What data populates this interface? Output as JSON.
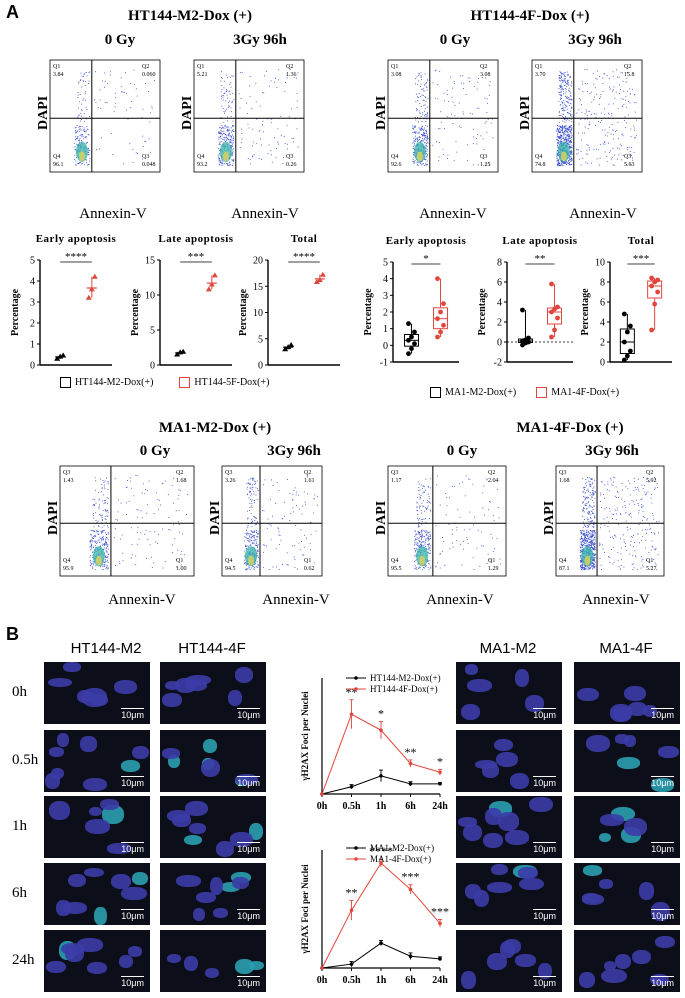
{
  "panel_a": {
    "letter": "A",
    "ht144_m2_title": "HT144-M2-Dox (+)",
    "ht144_4f_title": "HT144-4F-Dox (+)",
    "ma1_m2_title": "MA1-M2-Dox (+)",
    "ma1_4f_title": "MA1-4F-Dox (+)",
    "cond_0": "0 Gy",
    "cond_3": "3Gy 96h",
    "x_axis": "Annexin-V",
    "y_axis": "DAPI",
    "flow_top": [
      {
        "q1": "Q1",
        "q1v": "3.84",
        "q2": "Q2",
        "q2v": "0.060",
        "q3": "Q3",
        "q3v": "0.048",
        "q4": "Q4",
        "q4v": "96.1"
      },
      {
        "q1": "Q1",
        "q1v": "5.21",
        "q2": "Q2",
        "q2v": "1.36",
        "q3": "Q3",
        "q3v": "0.26",
        "q4": "Q4",
        "q4v": "93.2"
      },
      {
        "q1": "Q1",
        "q1v": "3.08",
        "q2": "Q2",
        "q2v": "3.08",
        "q3": "Q3",
        "q3v": "1.25",
        "q4": "Q4",
        "q4v": "92.6"
      },
      {
        "q1": "Q1",
        "q1v": "3.70",
        "q2": "Q2",
        "q2v": "15.8",
        "q3": "Q3",
        "q3v": "5.63",
        "q4": "Q4",
        "q4v": "74.8"
      }
    ],
    "flow_bottom": [
      {
        "q1": "Q3",
        "q1v": "1.43",
        "q2": "Q2",
        "q2v": "1.68",
        "q3": "Q1",
        "q3v": "1.00",
        "q4": "Q4",
        "q4v": "95.9"
      },
      {
        "q1": "Q3",
        "q1v": "3.26",
        "q2": "Q2",
        "q2v": "1.61",
        "q3": "Q1",
        "q3v": "0.62",
        "q4": "Q4",
        "q4v": "94.5"
      },
      {
        "q1": "Q3",
        "q1v": "1.17",
        "q2": "Q2",
        "q2v": "2.04",
        "q3": "Q1",
        "q3v": "1.29",
        "q4": "Q4",
        "q4v": "95.5"
      },
      {
        "q1": "Q3",
        "q1v": "1.68",
        "q2": "Q2",
        "q2v": "5.92",
        "q3": "Q1",
        "q3v": "5.27",
        "q4": "Q4",
        "q4v": "87.1"
      }
    ],
    "legend_ht_black": "HT144-M2-Dox(+)",
    "legend_ht_red": "HT144-5F-Dox(+)",
    "legend_ma_black": "MA1-M2-Dox(+)",
    "legend_ma_red": "MA1-4F-Dox(+)"
  },
  "panel_b": {
    "letter": "B",
    "col_ht_m2": "HT144-M2",
    "col_ht_4f": "HT144-4F",
    "col_ma_m2": "MA1-M2",
    "col_ma_4f": "MA1-4F",
    "row_labels": [
      "0h",
      "0.5h",
      "1h",
      "6h",
      "24h"
    ],
    "scale_bar": "10μm"
  },
  "colors": {
    "black": "#000000",
    "red": "#e0463c",
    "scatter": "#3a4fd0"
  },
  "chart_data": [
    {
      "type": "scatter",
      "title": "Early apoptosis",
      "ylabel": "Percentage",
      "ylim": [
        0,
        5
      ],
      "yticks": [
        "0",
        "1",
        "2",
        "3",
        "4",
        "5"
      ],
      "significance": "****",
      "series": [
        {
          "name": "HT144-M2-Dox(+)",
          "values": [
            0.3,
            0.4,
            0.45
          ]
        },
        {
          "name": "HT144-5F-Dox(+)",
          "values": [
            3.2,
            3.6,
            4.2
          ]
        }
      ]
    },
    {
      "type": "scatter",
      "title": "Late apoptosis",
      "ylabel": "Percentage",
      "ylim": [
        0,
        15
      ],
      "yticks": [
        "0",
        "5",
        "10",
        "15"
      ],
      "significance": "***",
      "series": [
        {
          "name": "HT144-M2-Dox(+)",
          "values": [
            1.5,
            1.8,
            1.9
          ]
        },
        {
          "name": "HT144-5F-Dox(+)",
          "values": [
            10.8,
            11.5,
            12.8
          ]
        }
      ]
    },
    {
      "type": "scatter",
      "title": "Total",
      "ylabel": "Percentage",
      "ylim": [
        0,
        20
      ],
      "yticks": [
        "0",
        "5",
        "10",
        "15",
        "20"
      ],
      "significance": "****",
      "series": [
        {
          "name": "HT144-M2-Dox(+)",
          "values": [
            3.0,
            3.4,
            3.8
          ]
        },
        {
          "name": "HT144-5F-Dox(+)",
          "values": [
            15.8,
            16.2,
            17.2
          ]
        }
      ]
    },
    {
      "type": "box",
      "title": "Early apoptosis",
      "ylabel": "Percentage",
      "ylim": [
        -1,
        5
      ],
      "yticks": [
        "-1",
        "0",
        "1",
        "2",
        "3",
        "4",
        "5"
      ],
      "significance": "*",
      "series": [
        {
          "name": "MA1-M2-Dox(+)",
          "values": [
            -0.5,
            -0.2,
            0.1,
            0.3,
            0.5,
            0.8,
            1.3
          ]
        },
        {
          "name": "MA1-4F-Dox(+)",
          "values": [
            0.5,
            0.8,
            1.2,
            1.6,
            2.0,
            2.5,
            4.0
          ]
        }
      ]
    },
    {
      "type": "box",
      "title": "Late apoptosis",
      "ylabel": "Percentage",
      "ylim": [
        -2,
        8
      ],
      "yticks": [
        "-2",
        "0",
        "2",
        "4",
        "6",
        "8"
      ],
      "significance": "**",
      "series": [
        {
          "name": "MA1-M2-Dox(+)",
          "values": [
            -0.3,
            -0.1,
            0.0,
            0.1,
            0.2,
            0.4,
            3.2
          ]
        },
        {
          "name": "MA1-4F-Dox(+)",
          "values": [
            0.5,
            1.2,
            2.4,
            3.0,
            3.3,
            3.5,
            5.8
          ]
        }
      ]
    },
    {
      "type": "box",
      "title": "Total",
      "ylabel": "Percentage",
      "ylim": [
        0,
        10
      ],
      "yticks": [
        "0",
        "2",
        "4",
        "6",
        "8",
        "10"
      ],
      "significance": "***",
      "series": [
        {
          "name": "MA1-M2-Dox(+)",
          "values": [
            0.2,
            0.6,
            1.1,
            2.0,
            3.0,
            3.6,
            4.8
          ]
        },
        {
          "name": "MA1-4F-Dox(+)",
          "values": [
            3.2,
            5.8,
            7.0,
            7.6,
            8.0,
            8.2,
            8.4
          ]
        }
      ]
    },
    {
      "type": "line",
      "xlabel": "",
      "ylabel": "γH2AX Foci per Nuclei",
      "x": [
        "0h",
        "0.5h",
        "1h",
        "6h",
        "24h"
      ],
      "ylim": [
        0,
        16
      ],
      "series": [
        {
          "name": "HT144-M2-Dox(+)",
          "values": [
            0,
            1.0,
            2.5,
            1.4,
            1.4
          ],
          "err": [
            0,
            0.3,
            0.8,
            0.3,
            0.2
          ]
        },
        {
          "name": "HT144-4F-Dox(+)",
          "values": [
            0,
            11.0,
            8.8,
            4.2,
            3.0
          ],
          "err": [
            0,
            2.0,
            1.2,
            0.5,
            0.4
          ]
        }
      ],
      "annotations": [
        "**",
        "*",
        "**",
        "*"
      ]
    },
    {
      "type": "line",
      "xlabel": "",
      "ylabel": "γH2AX Foci per Nuclei",
      "x": [
        "0h",
        "0.5h",
        "1h",
        "6h",
        "24h"
      ],
      "ylim": [
        0,
        18
      ],
      "series": [
        {
          "name": "MA1-M2-Dox(+)",
          "values": [
            0,
            0.6,
            3.8,
            1.8,
            1.4
          ],
          "err": [
            0,
            0.4,
            0.4,
            0.5,
            0.3
          ]
        },
        {
          "name": "MA1-4F-Dox(+)",
          "values": [
            0,
            8.8,
            16.0,
            12.0,
            6.8
          ],
          "err": [
            0,
            1.5,
            0.6,
            0.7,
            0.6
          ]
        }
      ],
      "annotations": [
        "**",
        "****",
        "***",
        "***"
      ]
    }
  ]
}
